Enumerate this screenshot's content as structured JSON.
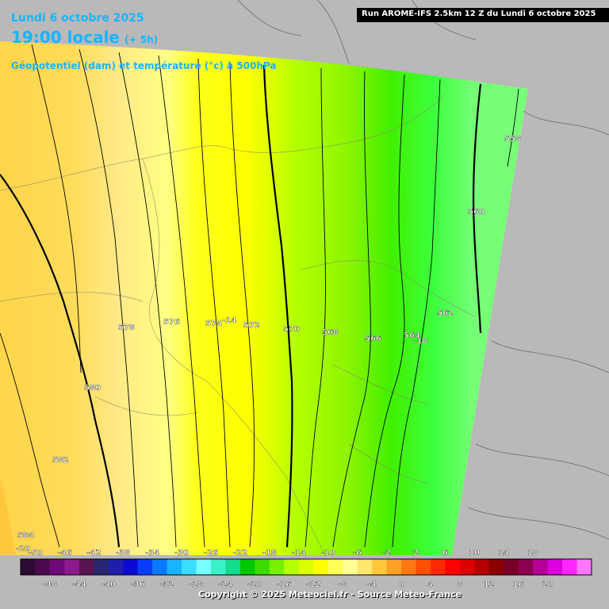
{
  "header": {
    "date": "Lundi 6 octobre 2025",
    "local_hour": "19:00 locale",
    "lead_time": "(+ 5h)",
    "field": "Géopotentiel (dam) et température (°c) à 500hPa",
    "run": "Run AROME-IFS 2.5km 12 Z du Lundi 6 octobre 2025"
  },
  "isohypses": [
    {
      "value": "558",
      "label_top": false
    },
    {
      "value": "560",
      "label_top": false
    },
    {
      "value": "562",
      "label_top": false
    },
    {
      "value": "564",
      "label_top": false
    },
    {
      "value": "566",
      "label_top": false
    },
    {
      "value": "568",
      "label_top": false
    },
    {
      "value": "570",
      "label_top": false
    },
    {
      "value": "572",
      "label_top": false
    },
    {
      "value": "574",
      "label_top": false
    },
    {
      "value": "576",
      "label_top": false
    },
    {
      "value": "578",
      "label_top": false
    },
    {
      "value": "580",
      "label_top": false
    },
    {
      "value": "582",
      "label_top": false
    },
    {
      "value": "584",
      "label_top": false
    }
  ],
  "temperature_labels": [
    "-14",
    "-18",
    "-20"
  ],
  "legend": {
    "top_ticks": [
      "-50",
      "-46",
      "-42",
      "-38",
      "-34",
      "-30",
      "-26",
      "-22",
      "-18",
      "-14",
      "-10",
      "-6",
      "-2",
      "2",
      "6",
      "10",
      "14",
      "18"
    ],
    "bottom_ticks": [
      "-48",
      "-44",
      "-40",
      "-36",
      "-32",
      "-28",
      "-24",
      "-20",
      "-16",
      "-12",
      "-8",
      "-4",
      "0",
      "4",
      "8",
      "12",
      "16",
      "20"
    ],
    "colors": [
      "#2d0a33",
      "#4a0a4f",
      "#6e0a78",
      "#8c1a8c",
      "#5a1450",
      "#28266e",
      "#1e1eaa",
      "#0a0ad2",
      "#0a3cff",
      "#0a78ff",
      "#19b4ff",
      "#3cdcff",
      "#78ffff",
      "#3cf0c8",
      "#14dc8c",
      "#00c800",
      "#3cdc00",
      "#78f000",
      "#b4ff00",
      "#dcff00",
      "#ffff00",
      "#ffff5a",
      "#ffff96",
      "#ffe66e",
      "#ffc83c",
      "#ffa028",
      "#ff7814",
      "#ff5000",
      "#ff2800",
      "#ff0000",
      "#dc0000",
      "#b40000",
      "#8c0000",
      "#780028",
      "#8c0050",
      "#b40096",
      "#dc00dc",
      "#ff28ff",
      "#ff78ff"
    ]
  },
  "copyright": "Copyright © 2025 Meteociel.fr - Source Meteo-France"
}
